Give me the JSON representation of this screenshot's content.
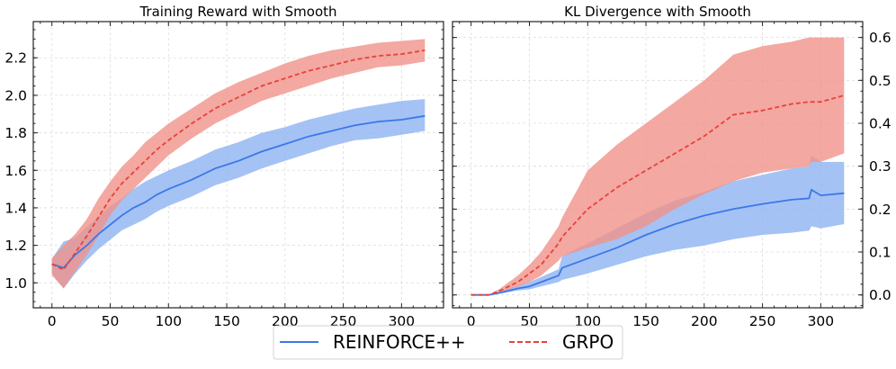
{
  "chart_data": [
    {
      "type": "line",
      "title": "Training Reward with Smooth",
      "xlabel": "",
      "ylabel": "",
      "xlim": [
        -16,
        336
      ],
      "ylim": [
        0.867,
        2.393
      ],
      "xticks": [
        0,
        50,
        100,
        150,
        200,
        250,
        300
      ],
      "xtick_labels": [
        "0",
        "50",
        "100",
        "150",
        "200",
        "250",
        "300"
      ],
      "yticks": [
        1.0,
        1.2,
        1.4,
        1.6,
        1.8,
        2.0,
        2.2
      ],
      "ytick_labels": [
        "1.0",
        "1.2",
        "1.4",
        "1.6",
        "1.8",
        "2.0",
        "2.2"
      ],
      "y_axis_side": "left",
      "grid": true,
      "x": [
        0,
        10,
        20,
        30,
        40,
        50,
        60,
        70,
        80,
        90,
        100,
        120,
        140,
        160,
        180,
        200,
        220,
        240,
        260,
        280,
        300,
        320
      ],
      "series": [
        {
          "name": "REINFORCE++",
          "color": "#3b78e7",
          "band_color": "#8fb3f2",
          "style": "solid",
          "values": [
            1.1,
            1.08,
            1.15,
            1.2,
            1.26,
            1.31,
            1.36,
            1.4,
            1.43,
            1.47,
            1.5,
            1.55,
            1.61,
            1.65,
            1.7,
            1.74,
            1.78,
            1.81,
            1.84,
            1.86,
            1.87,
            1.89
          ],
          "lower": [
            1.05,
            0.97,
            1.05,
            1.12,
            1.18,
            1.23,
            1.28,
            1.31,
            1.34,
            1.38,
            1.41,
            1.46,
            1.52,
            1.56,
            1.61,
            1.65,
            1.69,
            1.73,
            1.76,
            1.77,
            1.79,
            1.81
          ],
          "upper": [
            1.13,
            1.22,
            1.24,
            1.3,
            1.35,
            1.41,
            1.45,
            1.5,
            1.54,
            1.57,
            1.6,
            1.65,
            1.71,
            1.75,
            1.8,
            1.83,
            1.87,
            1.9,
            1.93,
            1.95,
            1.97,
            1.98
          ]
        },
        {
          "name": "GRPO",
          "color": "#e8413a",
          "band_color": "#f0928a",
          "style": "dashed",
          "values": [
            1.1,
            1.07,
            1.16,
            1.25,
            1.35,
            1.45,
            1.53,
            1.59,
            1.65,
            1.71,
            1.76,
            1.85,
            1.93,
            1.99,
            2.05,
            2.09,
            2.13,
            2.16,
            2.19,
            2.21,
            2.22,
            2.24
          ],
          "lower": [
            1.04,
            0.97,
            1.06,
            1.15,
            1.25,
            1.36,
            1.44,
            1.5,
            1.56,
            1.62,
            1.68,
            1.77,
            1.85,
            1.91,
            1.97,
            2.01,
            2.05,
            2.09,
            2.12,
            2.15,
            2.16,
            2.18
          ],
          "upper": [
            1.13,
            1.2,
            1.26,
            1.34,
            1.45,
            1.54,
            1.62,
            1.68,
            1.75,
            1.8,
            1.85,
            1.93,
            2.01,
            2.07,
            2.12,
            2.17,
            2.21,
            2.24,
            2.26,
            2.28,
            2.29,
            2.3
          ]
        }
      ]
    },
    {
      "type": "line",
      "title": "KL Divergence with Smooth",
      "xlabel": "",
      "ylabel": "",
      "xlim": [
        -16,
        336
      ],
      "ylim": [
        -0.03,
        0.637
      ],
      "xticks": [
        0,
        50,
        100,
        150,
        200,
        250,
        300
      ],
      "xtick_labels": [
        "0",
        "50",
        "100",
        "150",
        "200",
        "250",
        "300"
      ],
      "yticks": [
        0.0,
        0.1,
        0.2,
        0.3,
        0.4,
        0.5,
        0.6
      ],
      "ytick_labels": [
        "0.0",
        "0.1",
        "0.2",
        "0.3",
        "0.4",
        "0.5",
        "0.6"
      ],
      "y_axis_side": "right",
      "grid": true,
      "x": [
        0,
        15,
        25,
        40,
        50,
        60,
        75,
        78,
        100,
        125,
        150,
        175,
        200,
        225,
        250,
        275,
        290,
        292,
        300,
        320
      ],
      "series": [
        {
          "name": "REINFORCE++",
          "color": "#3b78e7",
          "band_color": "#8fb3f2",
          "style": "solid",
          "values": [
            0,
            0,
            0.005,
            0.015,
            0.02,
            0.03,
            0.045,
            0.063,
            0.085,
            0.11,
            0.14,
            0.165,
            0.185,
            0.2,
            0.212,
            0.222,
            0.225,
            0.245,
            0.232,
            0.237
          ],
          "lower": [
            0,
            0,
            0.003,
            0.01,
            0.013,
            0.02,
            0.03,
            0.035,
            0.05,
            0.07,
            0.09,
            0.105,
            0.115,
            0.13,
            0.14,
            0.145,
            0.15,
            0.16,
            0.155,
            0.165
          ],
          "upper": [
            0,
            0,
            0.008,
            0.022,
            0.03,
            0.042,
            0.06,
            0.09,
            0.12,
            0.155,
            0.19,
            0.22,
            0.24,
            0.265,
            0.28,
            0.295,
            0.3,
            0.325,
            0.31,
            0.31
          ]
        },
        {
          "name": "GRPO",
          "color": "#e8413a",
          "band_color": "#f0928a",
          "style": "dashed",
          "values": [
            0,
            0,
            0.01,
            0.03,
            0.05,
            0.07,
            0.12,
            0.135,
            0.2,
            0.25,
            0.29,
            0.33,
            0.37,
            0.42,
            0.43,
            0.445,
            0.45,
            0.45,
            0.45,
            0.465
          ],
          "lower": [
            0,
            0,
            0.006,
            0.02,
            0.03,
            0.045,
            0.08,
            0.09,
            0.11,
            0.13,
            0.16,
            0.2,
            0.235,
            0.265,
            0.285,
            0.295,
            0.3,
            0.31,
            0.31,
            0.33
          ],
          "upper": [
            0,
            0,
            0.015,
            0.045,
            0.07,
            0.1,
            0.16,
            0.18,
            0.29,
            0.35,
            0.4,
            0.45,
            0.5,
            0.56,
            0.58,
            0.59,
            0.6,
            0.6,
            0.6,
            0.6
          ]
        }
      ]
    }
  ],
  "legend": {
    "placement": "bottom-center",
    "items": [
      {
        "label": "REINFORCE++",
        "color": "#3b78e7",
        "style": "solid"
      },
      {
        "label": "GRPO",
        "color": "#e8413a",
        "style": "dashed"
      }
    ]
  }
}
